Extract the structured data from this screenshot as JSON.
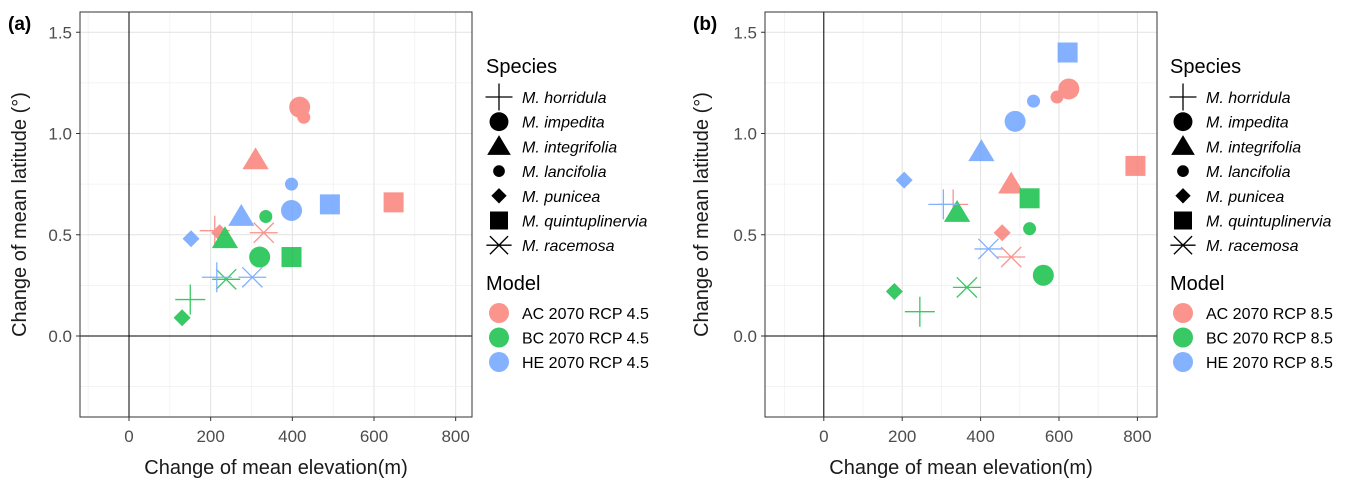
{
  "chart_data": [
    {
      "type": "scatter",
      "panel_label": "(a)",
      "xlabel": "Change of mean elevation(m)",
      "ylabel": "Change of mean latitude (°)",
      "xlim": [
        -120,
        840
      ],
      "ylim": [
        -0.4,
        1.6
      ],
      "xticks": [
        "0",
        "200",
        "400",
        "600",
        "800"
      ],
      "yticks": [
        "0.0",
        "0.5",
        "1.0",
        "1.5"
      ],
      "grid": true,
      "legend_placement": "right",
      "species_legend_title": "Species",
      "model_legend_title": "Model",
      "species": [
        {
          "name": "M. horridula",
          "shape": "plus"
        },
        {
          "name": "M. impedita",
          "shape": "circle-large"
        },
        {
          "name": "M. integrifolia",
          "shape": "triangle"
        },
        {
          "name": "M. lancifolia",
          "shape": "circle-small"
        },
        {
          "name": "M. punicea",
          "shape": "diamond"
        },
        {
          "name": "M. quintuplinervia",
          "shape": "square"
        },
        {
          "name": "M. racemosa",
          "shape": "asterisk"
        }
      ],
      "models": [
        {
          "name": "AC 2070 RCP 4.5",
          "color": "#F8766D"
        },
        {
          "name": "BC 2070 RCP 4.5",
          "color": "#00BA38"
        },
        {
          "name": "HE 2070 RCP 4.5",
          "color": "#619CFF"
        }
      ],
      "points": [
        {
          "species": 0,
          "model": 0,
          "x": 210,
          "y": 0.52
        },
        {
          "species": 1,
          "model": 0,
          "x": 418,
          "y": 1.13
        },
        {
          "species": 2,
          "model": 0,
          "x": 310,
          "y": 0.87
        },
        {
          "species": 3,
          "model": 0,
          "x": 428,
          "y": 1.08
        },
        {
          "species": 4,
          "model": 0,
          "x": 222,
          "y": 0.51
        },
        {
          "species": 5,
          "model": 0,
          "x": 648,
          "y": 0.66
        },
        {
          "species": 6,
          "model": 0,
          "x": 330,
          "y": 0.51
        },
        {
          "species": 0,
          "model": 1,
          "x": 150,
          "y": 0.18
        },
        {
          "species": 1,
          "model": 1,
          "x": 320,
          "y": 0.39
        },
        {
          "species": 2,
          "model": 1,
          "x": 235,
          "y": 0.48
        },
        {
          "species": 3,
          "model": 1,
          "x": 335,
          "y": 0.59
        },
        {
          "species": 4,
          "model": 1,
          "x": 130,
          "y": 0.09
        },
        {
          "species": 5,
          "model": 1,
          "x": 398,
          "y": 0.39
        },
        {
          "species": 6,
          "model": 1,
          "x": 238,
          "y": 0.28
        },
        {
          "species": 0,
          "model": 2,
          "x": 215,
          "y": 0.29
        },
        {
          "species": 1,
          "model": 2,
          "x": 398,
          "y": 0.62
        },
        {
          "species": 2,
          "model": 2,
          "x": 275,
          "y": 0.59
        },
        {
          "species": 3,
          "model": 2,
          "x": 398,
          "y": 0.75
        },
        {
          "species": 4,
          "model": 2,
          "x": 152,
          "y": 0.48
        },
        {
          "species": 5,
          "model": 2,
          "x": 492,
          "y": 0.65
        },
        {
          "species": 6,
          "model": 2,
          "x": 302,
          "y": 0.29
        }
      ]
    },
    {
      "type": "scatter",
      "panel_label": "(b)",
      "xlabel": "Change of mean elevation(m)",
      "ylabel": "Change of mean latitude (°)",
      "xlim": [
        -150,
        850
      ],
      "ylim": [
        -0.4,
        1.6
      ],
      "xticks": [
        "0",
        "200",
        "400",
        "600",
        "800"
      ],
      "yticks": [
        "0.0",
        "0.5",
        "1.0",
        "1.5"
      ],
      "grid": true,
      "legend_placement": "right",
      "species_legend_title": "Species",
      "model_legend_title": "Model",
      "species": [
        {
          "name": "M. horridula",
          "shape": "plus"
        },
        {
          "name": "M. impedita",
          "shape": "circle-large"
        },
        {
          "name": "M. integrifolia",
          "shape": "triangle"
        },
        {
          "name": "M. lancifolia",
          "shape": "circle-small"
        },
        {
          "name": "M. punicea",
          "shape": "diamond"
        },
        {
          "name": "M. quintuplinervia",
          "shape": "square"
        },
        {
          "name": "M. racemosa",
          "shape": "asterisk"
        }
      ],
      "models": [
        {
          "name": "AC 2070 RCP 8.5",
          "color": "#F8766D"
        },
        {
          "name": "BC 2070 RCP 8.5",
          "color": "#00BA38"
        },
        {
          "name": "HE 2070 RCP 8.5",
          "color": "#619CFF"
        }
      ],
      "points": [
        {
          "species": 0,
          "model": 0,
          "x": 330,
          "y": 0.65
        },
        {
          "species": 1,
          "model": 0,
          "x": 625,
          "y": 1.22
        },
        {
          "species": 2,
          "model": 0,
          "x": 478,
          "y": 0.75
        },
        {
          "species": 3,
          "model": 0,
          "x": 595,
          "y": 1.18
        },
        {
          "species": 4,
          "model": 0,
          "x": 455,
          "y": 0.51
        },
        {
          "species": 5,
          "model": 0,
          "x": 795,
          "y": 0.84
        },
        {
          "species": 6,
          "model": 0,
          "x": 478,
          "y": 0.39
        },
        {
          "species": 0,
          "model": 1,
          "x": 245,
          "y": 0.12
        },
        {
          "species": 1,
          "model": 1,
          "x": 560,
          "y": 0.3
        },
        {
          "species": 2,
          "model": 1,
          "x": 340,
          "y": 0.61
        },
        {
          "species": 3,
          "model": 1,
          "x": 525,
          "y": 0.53
        },
        {
          "species": 4,
          "model": 1,
          "x": 180,
          "y": 0.22
        },
        {
          "species": 5,
          "model": 1,
          "x": 525,
          "y": 0.68
        },
        {
          "species": 6,
          "model": 1,
          "x": 365,
          "y": 0.24
        },
        {
          "species": 0,
          "model": 2,
          "x": 305,
          "y": 0.65
        },
        {
          "species": 1,
          "model": 2,
          "x": 488,
          "y": 1.06
        },
        {
          "species": 2,
          "model": 2,
          "x": 402,
          "y": 0.91
        },
        {
          "species": 3,
          "model": 2,
          "x": 535,
          "y": 1.16
        },
        {
          "species": 4,
          "model": 2,
          "x": 205,
          "y": 0.77
        },
        {
          "species": 5,
          "model": 2,
          "x": 622,
          "y": 1.4
        },
        {
          "species": 6,
          "model": 2,
          "x": 420,
          "y": 0.43
        }
      ]
    }
  ]
}
